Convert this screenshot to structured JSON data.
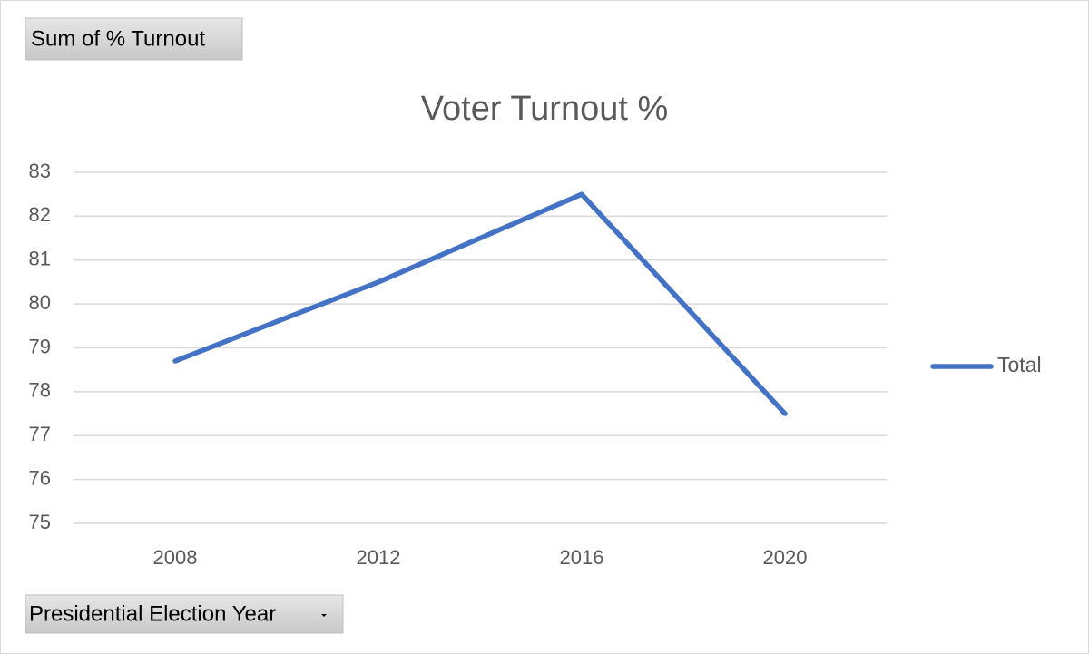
{
  "chart_data": {
    "type": "line",
    "title": "Voter Turnout %",
    "value_field": "Sum of % Turnout",
    "axis_field": "Presidential Election Year",
    "categories": [
      "2008",
      "2012",
      "2016",
      "2020"
    ],
    "series": [
      {
        "name": "Total",
        "color": "#4472c4",
        "values": [
          78.7,
          80.5,
          82.5,
          77.5
        ]
      }
    ],
    "ylim": [
      75,
      83
    ],
    "yticks": [
      75,
      76,
      77,
      78,
      79,
      80,
      81,
      82,
      83
    ],
    "grid": true,
    "legend": "right"
  }
}
